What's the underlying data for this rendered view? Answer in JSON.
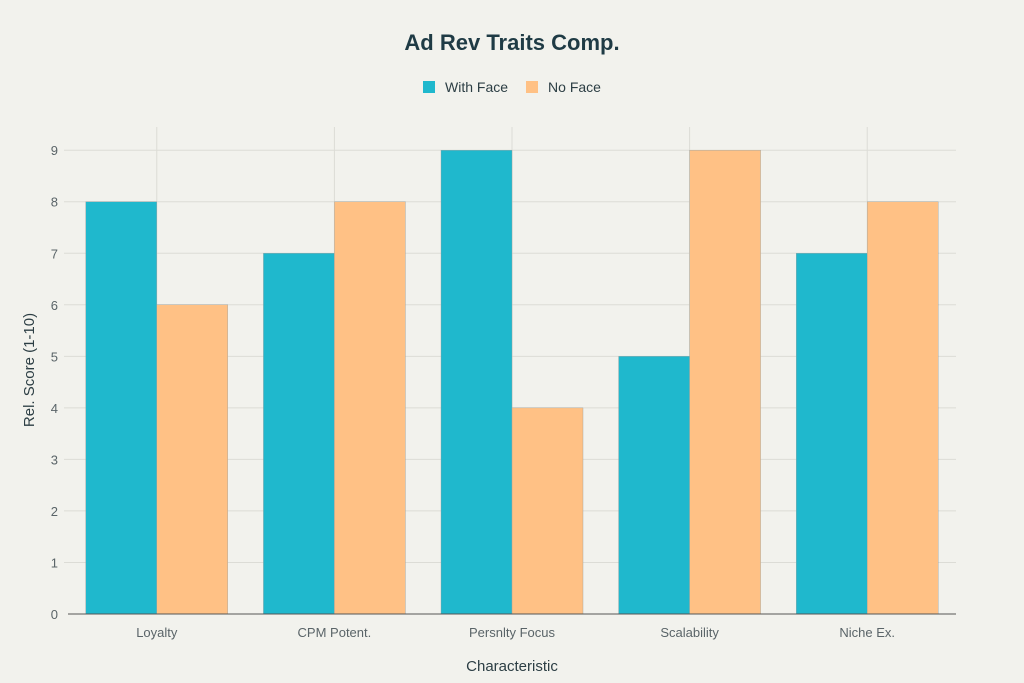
{
  "chart_data": {
    "type": "bar",
    "title": "Ad Rev Traits Comp.",
    "xlabel": "Characteristic",
    "ylabel": "Rel. Score (1-10)",
    "categories": [
      "Loyalty",
      "CPM Potent.",
      "Persnlty Focus",
      "Scalability",
      "Niche Ex."
    ],
    "series": [
      {
        "name": "With Face",
        "color": "#1fb8cd",
        "values": [
          8,
          7,
          9,
          5,
          7
        ]
      },
      {
        "name": "No Face",
        "color": "#ffc185",
        "values": [
          6,
          8,
          4,
          9,
          8
        ]
      }
    ],
    "ylim": [
      0,
      9.45
    ],
    "yticks": [
      0,
      1,
      2,
      3,
      4,
      5,
      6,
      7,
      8,
      9
    ],
    "grid": true,
    "legend": "top-center"
  }
}
